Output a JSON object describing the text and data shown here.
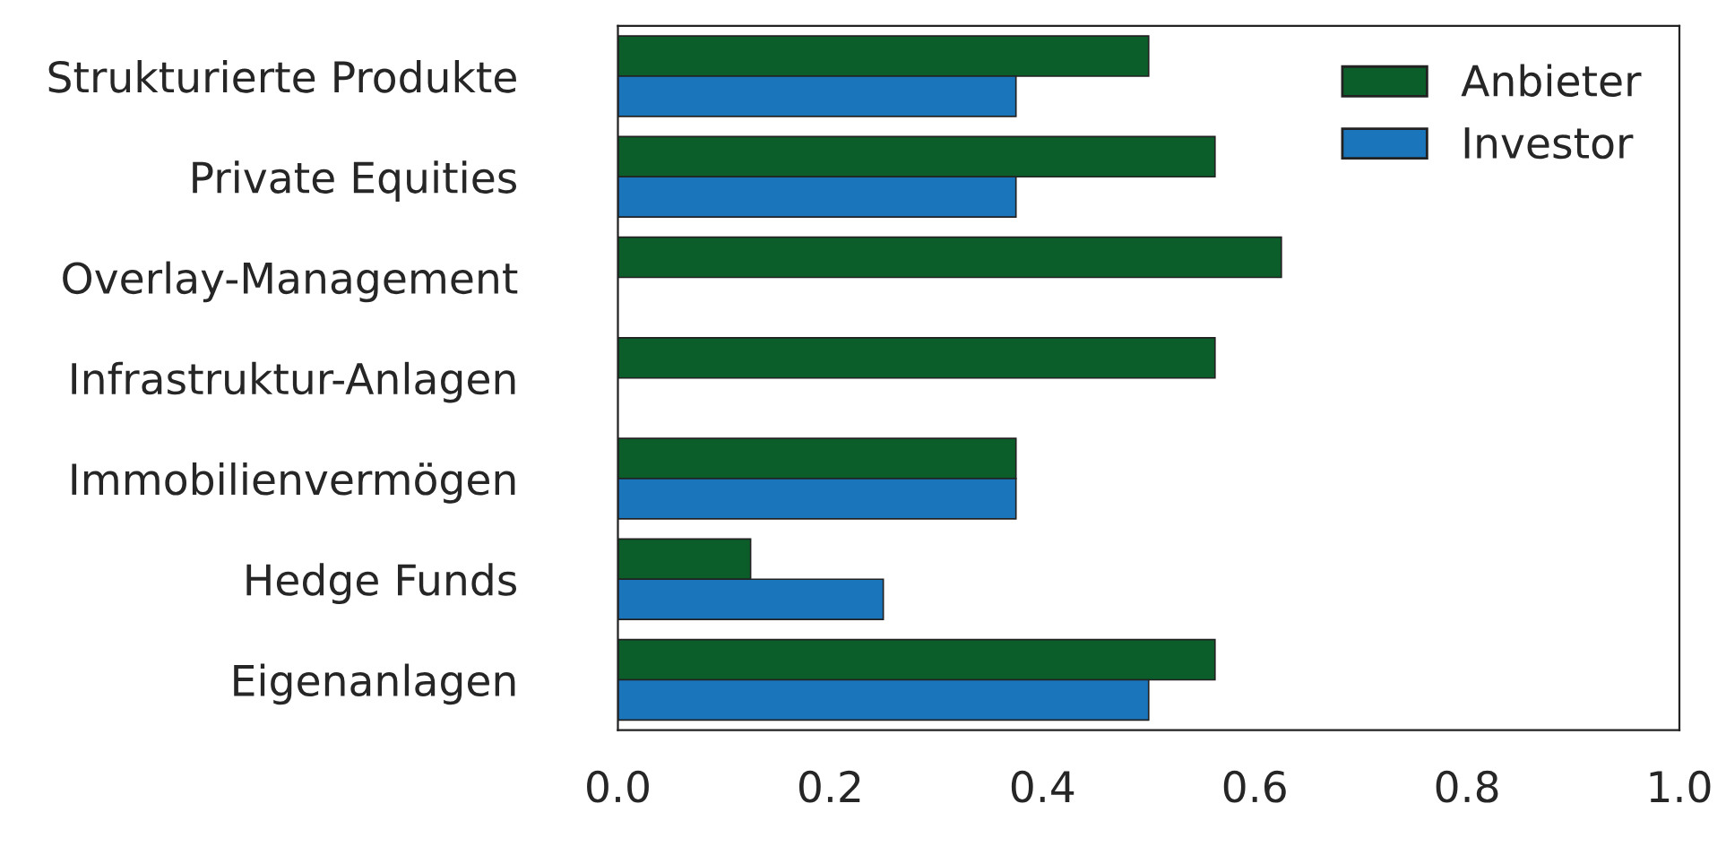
{
  "chart_data": {
    "type": "bar",
    "orientation": "horizontal",
    "categories": [
      "Strukturierte Produkte",
      "Private Equities",
      "Overlay-Management",
      "Infrastruktur-Anlagen",
      "Immobilienvermögen",
      "Hedge Funds",
      "Eigenanlagen"
    ],
    "series": [
      {
        "name": "Anbieter",
        "color": "#0b5e2a",
        "values": [
          0.5,
          0.5625,
          0.625,
          0.5625,
          0.375,
          0.125,
          0.5625
        ]
      },
      {
        "name": "Investor",
        "color": "#1b75bb",
        "values": [
          0.375,
          0.375,
          null,
          null,
          0.375,
          0.25,
          0.5
        ]
      }
    ],
    "xlim": [
      0,
      1
    ],
    "xticks": [
      {
        "value": 0,
        "label": "0.0"
      },
      {
        "value": 0.2,
        "label": "0.2"
      },
      {
        "value": 0.4,
        "label": "0.4"
      },
      {
        "value": 0.6,
        "label": "0.6"
      },
      {
        "value": 0.8,
        "label": "0.8"
      },
      {
        "value": 1,
        "label": "1.0"
      }
    ],
    "grid": false,
    "legend": "top right"
  }
}
